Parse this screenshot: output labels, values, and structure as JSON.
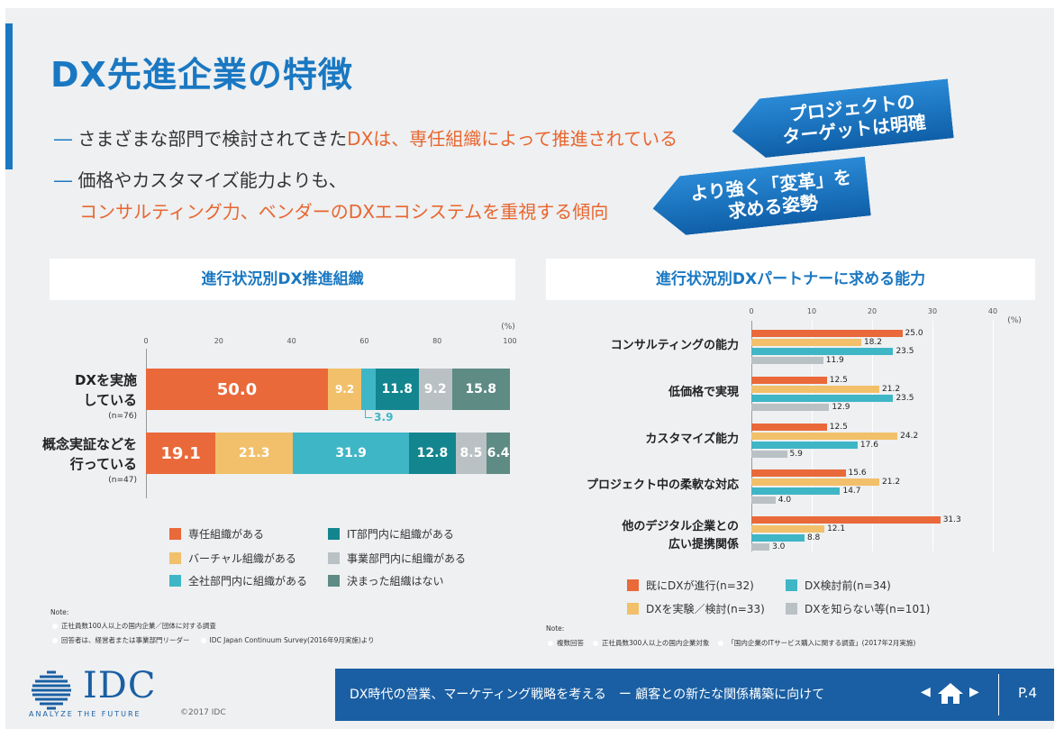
{
  "title": "DX先進企業の特徴",
  "bullets": [
    {
      "dash": "―",
      "plain": "さまざまな部門で検討されてきた",
      "highlight": "DXは、専任組織によって推進されている"
    },
    {
      "dash": "―",
      "line1": "価格やカスタマイズ能力よりも、",
      "line2": "コンサルティング力、ベンダーのDXエコシステムを重視する傾向"
    }
  ],
  "callouts": [
    {
      "line1": "プロジェクトの",
      "line2": "ターゲットは明確"
    },
    {
      "line1": "より強く「変革」を",
      "line2": "求める姿勢"
    }
  ],
  "left_panel_title": "進行状況別DX推進組織",
  "right_panel_title": "進行状況別DXパートナーに求める能力",
  "chart_data": [
    {
      "type": "bar",
      "orientation": "horizontal-stacked",
      "title": "進行状況別DX推進組織",
      "unit": "(%)",
      "xlim": [
        0,
        100
      ],
      "ticks": [
        "0",
        "20",
        "40",
        "60",
        "80",
        "100"
      ],
      "categories": [
        {
          "line1": "DXを実施",
          "line2": "している",
          "n": "(n=76)"
        },
        {
          "line1": "概念実証などを",
          "line2": "行っている",
          "n": "(n=47)"
        }
      ],
      "series": [
        {
          "name": "専任組織がある",
          "color": "#e9693a",
          "values": [
            50.0,
            19.1
          ],
          "labels": [
            "50.0",
            "19.1"
          ]
        },
        {
          "name": "バーチャル組織がある",
          "color": "#f2c06a",
          "values": [
            9.2,
            21.3
          ],
          "labels": [
            "9.2",
            "21.3"
          ]
        },
        {
          "name": "全社部門内に組織がある",
          "color": "#3fb6c6",
          "values": [
            3.9,
            31.9
          ],
          "labels": [
            "",
            "31.9"
          ]
        },
        {
          "name": "IT部門内に組織がある",
          "color": "#13858f",
          "values": [
            11.8,
            12.8
          ],
          "labels": [
            "11.8",
            "12.8"
          ]
        },
        {
          "name": "事業部門内に組織がある",
          "color": "#b9c1c4",
          "values": [
            9.2,
            8.5
          ],
          "labels": [
            "9.2",
            "8.5"
          ]
        },
        {
          "name": "決まった組織はない",
          "color": "#5e8b84",
          "values": [
            15.8,
            6.4
          ],
          "labels": [
            "15.8",
            "6.4"
          ]
        }
      ],
      "annotation": "3.9",
      "legend_order": [
        0,
        3,
        1,
        4,
        2,
        5
      ],
      "notes": [
        "Note:",
        "正社員数100人以上の国内企業／団体に対する調査",
        "回答者は、経営者または事業部門リーダー",
        "IDC Japan Continuum Survey(2016年9月実施)より"
      ]
    },
    {
      "type": "bar",
      "orientation": "horizontal-grouped",
      "title": "進行状況別DXパートナーに求める能力",
      "unit": "(%)",
      "xlim": [
        0,
        40
      ],
      "ticks": [
        "0",
        "10",
        "20",
        "30",
        "40"
      ],
      "categories": [
        {
          "line1": "コンサルティングの能力"
        },
        {
          "line1": "低価格で実現"
        },
        {
          "line1": "カスタマイズ能力"
        },
        {
          "line1": "プロジェクト中の柔軟な対応"
        },
        {
          "line1": "他のデジタル企業との",
          "line2": "広い提携関係"
        }
      ],
      "series": [
        {
          "name": "既にDXが進行(n=32)",
          "color": "#e9693a",
          "values": [
            25.0,
            12.5,
            12.5,
            15.6,
            31.3
          ]
        },
        {
          "name": "DXを実験／検討(n=33)",
          "color": "#f2c06a",
          "values": [
            18.2,
            21.2,
            24.2,
            21.2,
            12.1
          ]
        },
        {
          "name": "DX検討前(n=34)",
          "color": "#3fb6c6",
          "values": [
            23.5,
            23.5,
            17.6,
            14.7,
            8.8
          ]
        },
        {
          "name": "DXを知らない等(n=101)",
          "color": "#b9c1c4",
          "values": [
            11.9,
            12.9,
            5.9,
            4.0,
            3.0
          ]
        }
      ],
      "legend_order": [
        0,
        2,
        1,
        3
      ],
      "notes": [
        "Note:",
        "複数回答",
        "正社員数300人以上の国内企業対象",
        "「国内企業のITサービス購入に関する調査」(2017年2月実施)"
      ]
    }
  ],
  "footer": {
    "logo_text": "IDC",
    "tagline": "ANALYZE THE FUTURE",
    "copyright": "©2017 IDC",
    "text": "DX時代の営業、マーケティング戦略を考える　ー 顧客との新たな関係構築に向けて",
    "prev_arrow": "◀",
    "next_arrow": "▶",
    "page": "P.4"
  }
}
